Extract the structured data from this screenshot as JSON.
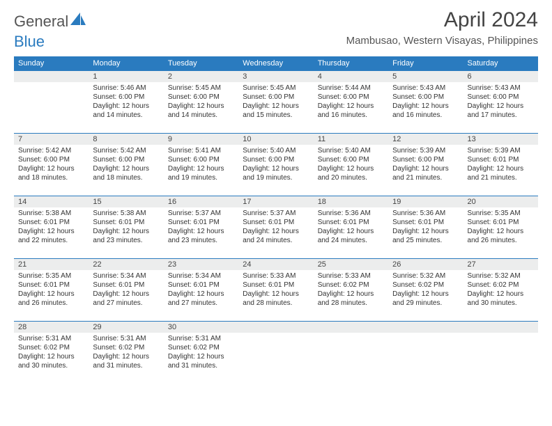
{
  "logo": {
    "part1": "General",
    "part2": "Blue"
  },
  "title": "April 2024",
  "location": "Mambusao, Western Visayas, Philippines",
  "dayHeaders": [
    "Sunday",
    "Monday",
    "Tuesday",
    "Wednesday",
    "Thursday",
    "Friday",
    "Saturday"
  ],
  "colors": {
    "headerBg": "#2a7bbf",
    "dayBg": "#eceded",
    "ruleColor": "#2a7bbf",
    "logoBlue": "#2a7bbf",
    "textDark": "#333333"
  },
  "weeks": [
    [
      {
        "num": "",
        "lines": []
      },
      {
        "num": "1",
        "lines": [
          "Sunrise: 5:46 AM",
          "Sunset: 6:00 PM",
          "Daylight: 12 hours",
          "and 14 minutes."
        ]
      },
      {
        "num": "2",
        "lines": [
          "Sunrise: 5:45 AM",
          "Sunset: 6:00 PM",
          "Daylight: 12 hours",
          "and 14 minutes."
        ]
      },
      {
        "num": "3",
        "lines": [
          "Sunrise: 5:45 AM",
          "Sunset: 6:00 PM",
          "Daylight: 12 hours",
          "and 15 minutes."
        ]
      },
      {
        "num": "4",
        "lines": [
          "Sunrise: 5:44 AM",
          "Sunset: 6:00 PM",
          "Daylight: 12 hours",
          "and 16 minutes."
        ]
      },
      {
        "num": "5",
        "lines": [
          "Sunrise: 5:43 AM",
          "Sunset: 6:00 PM",
          "Daylight: 12 hours",
          "and 16 minutes."
        ]
      },
      {
        "num": "6",
        "lines": [
          "Sunrise: 5:43 AM",
          "Sunset: 6:00 PM",
          "Daylight: 12 hours",
          "and 17 minutes."
        ]
      }
    ],
    [
      {
        "num": "7",
        "lines": [
          "Sunrise: 5:42 AM",
          "Sunset: 6:00 PM",
          "Daylight: 12 hours",
          "and 18 minutes."
        ]
      },
      {
        "num": "8",
        "lines": [
          "Sunrise: 5:42 AM",
          "Sunset: 6:00 PM",
          "Daylight: 12 hours",
          "and 18 minutes."
        ]
      },
      {
        "num": "9",
        "lines": [
          "Sunrise: 5:41 AM",
          "Sunset: 6:00 PM",
          "Daylight: 12 hours",
          "and 19 minutes."
        ]
      },
      {
        "num": "10",
        "lines": [
          "Sunrise: 5:40 AM",
          "Sunset: 6:00 PM",
          "Daylight: 12 hours",
          "and 19 minutes."
        ]
      },
      {
        "num": "11",
        "lines": [
          "Sunrise: 5:40 AM",
          "Sunset: 6:00 PM",
          "Daylight: 12 hours",
          "and 20 minutes."
        ]
      },
      {
        "num": "12",
        "lines": [
          "Sunrise: 5:39 AM",
          "Sunset: 6:00 PM",
          "Daylight: 12 hours",
          "and 21 minutes."
        ]
      },
      {
        "num": "13",
        "lines": [
          "Sunrise: 5:39 AM",
          "Sunset: 6:01 PM",
          "Daylight: 12 hours",
          "and 21 minutes."
        ]
      }
    ],
    [
      {
        "num": "14",
        "lines": [
          "Sunrise: 5:38 AM",
          "Sunset: 6:01 PM",
          "Daylight: 12 hours",
          "and 22 minutes."
        ]
      },
      {
        "num": "15",
        "lines": [
          "Sunrise: 5:38 AM",
          "Sunset: 6:01 PM",
          "Daylight: 12 hours",
          "and 23 minutes."
        ]
      },
      {
        "num": "16",
        "lines": [
          "Sunrise: 5:37 AM",
          "Sunset: 6:01 PM",
          "Daylight: 12 hours",
          "and 23 minutes."
        ]
      },
      {
        "num": "17",
        "lines": [
          "Sunrise: 5:37 AM",
          "Sunset: 6:01 PM",
          "Daylight: 12 hours",
          "and 24 minutes."
        ]
      },
      {
        "num": "18",
        "lines": [
          "Sunrise: 5:36 AM",
          "Sunset: 6:01 PM",
          "Daylight: 12 hours",
          "and 24 minutes."
        ]
      },
      {
        "num": "19",
        "lines": [
          "Sunrise: 5:36 AM",
          "Sunset: 6:01 PM",
          "Daylight: 12 hours",
          "and 25 minutes."
        ]
      },
      {
        "num": "20",
        "lines": [
          "Sunrise: 5:35 AM",
          "Sunset: 6:01 PM",
          "Daylight: 12 hours",
          "and 26 minutes."
        ]
      }
    ],
    [
      {
        "num": "21",
        "lines": [
          "Sunrise: 5:35 AM",
          "Sunset: 6:01 PM",
          "Daylight: 12 hours",
          "and 26 minutes."
        ]
      },
      {
        "num": "22",
        "lines": [
          "Sunrise: 5:34 AM",
          "Sunset: 6:01 PM",
          "Daylight: 12 hours",
          "and 27 minutes."
        ]
      },
      {
        "num": "23",
        "lines": [
          "Sunrise: 5:34 AM",
          "Sunset: 6:01 PM",
          "Daylight: 12 hours",
          "and 27 minutes."
        ]
      },
      {
        "num": "24",
        "lines": [
          "Sunrise: 5:33 AM",
          "Sunset: 6:01 PM",
          "Daylight: 12 hours",
          "and 28 minutes."
        ]
      },
      {
        "num": "25",
        "lines": [
          "Sunrise: 5:33 AM",
          "Sunset: 6:02 PM",
          "Daylight: 12 hours",
          "and 28 minutes."
        ]
      },
      {
        "num": "26",
        "lines": [
          "Sunrise: 5:32 AM",
          "Sunset: 6:02 PM",
          "Daylight: 12 hours",
          "and 29 minutes."
        ]
      },
      {
        "num": "27",
        "lines": [
          "Sunrise: 5:32 AM",
          "Sunset: 6:02 PM",
          "Daylight: 12 hours",
          "and 30 minutes."
        ]
      }
    ],
    [
      {
        "num": "28",
        "lines": [
          "Sunrise: 5:31 AM",
          "Sunset: 6:02 PM",
          "Daylight: 12 hours",
          "and 30 minutes."
        ]
      },
      {
        "num": "29",
        "lines": [
          "Sunrise: 5:31 AM",
          "Sunset: 6:02 PM",
          "Daylight: 12 hours",
          "and 31 minutes."
        ]
      },
      {
        "num": "30",
        "lines": [
          "Sunrise: 5:31 AM",
          "Sunset: 6:02 PM",
          "Daylight: 12 hours",
          "and 31 minutes."
        ]
      },
      {
        "num": "",
        "lines": []
      },
      {
        "num": "",
        "lines": []
      },
      {
        "num": "",
        "lines": []
      },
      {
        "num": "",
        "lines": []
      }
    ]
  ]
}
